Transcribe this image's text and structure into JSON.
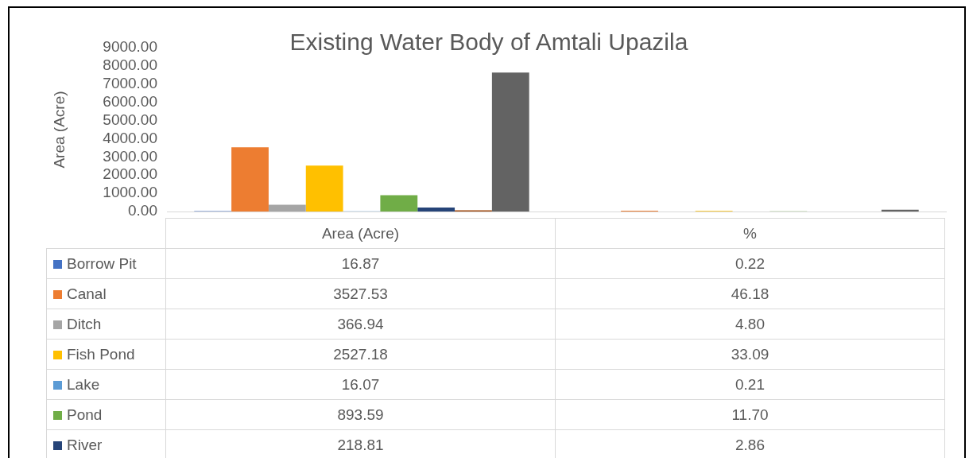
{
  "chart_data": {
    "type": "bar",
    "title": "Existing Water Body of Amtali Upazila",
    "ylabel": "Area (Acre)",
    "categories": [
      "Area (Acre)",
      "%"
    ],
    "ylim": [
      0,
      9000
    ],
    "yticks": [
      {
        "value": 0,
        "label": "0.00"
      },
      {
        "value": 1000,
        "label": "1000.00"
      },
      {
        "value": 2000,
        "label": "2000.00"
      },
      {
        "value": 3000,
        "label": "3000.00"
      },
      {
        "value": 4000,
        "label": "4000.00"
      },
      {
        "value": 5000,
        "label": "5000.00"
      },
      {
        "value": 6000,
        "label": "6000.00"
      },
      {
        "value": 7000,
        "label": "7000.00"
      },
      {
        "value": 8000,
        "label": "8000.00"
      },
      {
        "value": 9000,
        "label": "9000.00"
      }
    ],
    "legend": "bottom",
    "series": [
      {
        "name": "Borrow Pit",
        "color": "#4472c4",
        "values": [
          16.87,
          0.22
        ],
        "value_labels": [
          "16.87",
          "0.22"
        ]
      },
      {
        "name": "Canal",
        "color": "#ed7d31",
        "values": [
          3527.53,
          46.18
        ],
        "value_labels": [
          "3527.53",
          "46.18"
        ]
      },
      {
        "name": "Ditch",
        "color": "#a5a5a5",
        "values": [
          366.94,
          4.8
        ],
        "value_labels": [
          "366.94",
          "4.80"
        ]
      },
      {
        "name": "Fish Pond",
        "color": "#ffc000",
        "values": [
          2527.18,
          33.09
        ],
        "value_labels": [
          "2527.18",
          "33.09"
        ]
      },
      {
        "name": "Lake",
        "color": "#5b9bd5",
        "values": [
          16.07,
          0.21
        ],
        "value_labels": [
          "16.07",
          "0.21"
        ]
      },
      {
        "name": "Pond",
        "color": "#70ad47",
        "values": [
          893.59,
          11.7
        ],
        "value_labels": [
          "893.59",
          "11.70"
        ]
      },
      {
        "name": "River",
        "color": "#264478",
        "values": [
          218.81,
          2.86
        ],
        "value_labels": [
          "218.81",
          "2.86"
        ]
      },
      {
        "color": "#9e480e",
        "values": [
          70,
          null
        ]
      },
      {
        "color": "#636363",
        "values": [
          7640,
          100
        ]
      }
    ]
  }
}
